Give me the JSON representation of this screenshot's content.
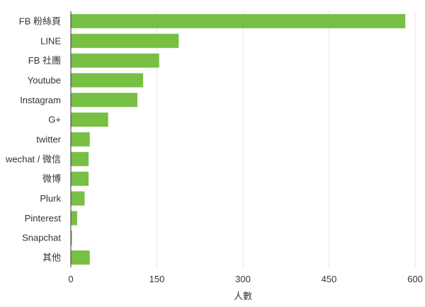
{
  "chart_data": {
    "type": "bar",
    "orientation": "horizontal",
    "categories": [
      "FB 粉絲頁",
      "LINE",
      "FB 社團",
      "Youtube",
      "Instagram",
      "G+",
      "twitter",
      "wechat / 微信",
      "微博",
      "Plurk",
      "Pinterest",
      "Snapchat",
      "其他"
    ],
    "values": [
      583,
      188,
      154,
      126,
      116,
      65,
      33,
      31,
      31,
      24,
      11,
      2,
      33
    ],
    "xlabel": "人數",
    "ylabel": "",
    "xlim": [
      0,
      600
    ],
    "xticks": [
      "0",
      "150",
      "300",
      "450",
      "600"
    ],
    "grid": true,
    "bar_color": "#77c043"
  }
}
